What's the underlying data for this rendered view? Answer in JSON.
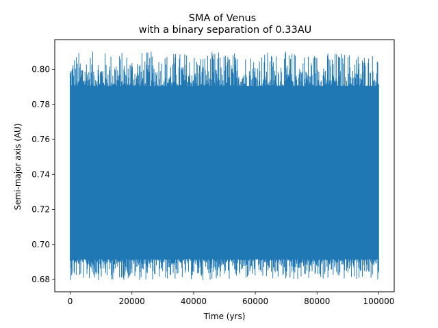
{
  "chart_data": {
    "type": "line",
    "title": "SMA of Venus",
    "subtitle": "with a binary separation of 0.33AU",
    "xlabel": "Time (yrs)",
    "ylabel": "Semi-major axis (AU)",
    "xlim": [
      -5000,
      105000
    ],
    "ylim": [
      0.673,
      0.817
    ],
    "xticks": [
      0,
      20000,
      40000,
      60000,
      80000,
      100000
    ],
    "xtick_labels": [
      "0",
      "20000",
      "40000",
      "60000",
      "80000",
      "100000"
    ],
    "yticks": [
      0.68,
      0.7,
      0.72,
      0.74,
      0.76,
      0.78,
      0.8
    ],
    "ytick_labels": [
      "0.68",
      "0.70",
      "0.72",
      "0.74",
      "0.76",
      "0.78",
      "0.80"
    ],
    "grid": false,
    "legend": "none",
    "series": [
      {
        "color": "#1f77b4",
        "x_range": [
          0,
          100000
        ],
        "envelope": {
          "upper_typical": 0.79,
          "upper_max": 0.81,
          "lower_typical": 0.692,
          "lower_min": 0.68
        }
      }
    ]
  }
}
